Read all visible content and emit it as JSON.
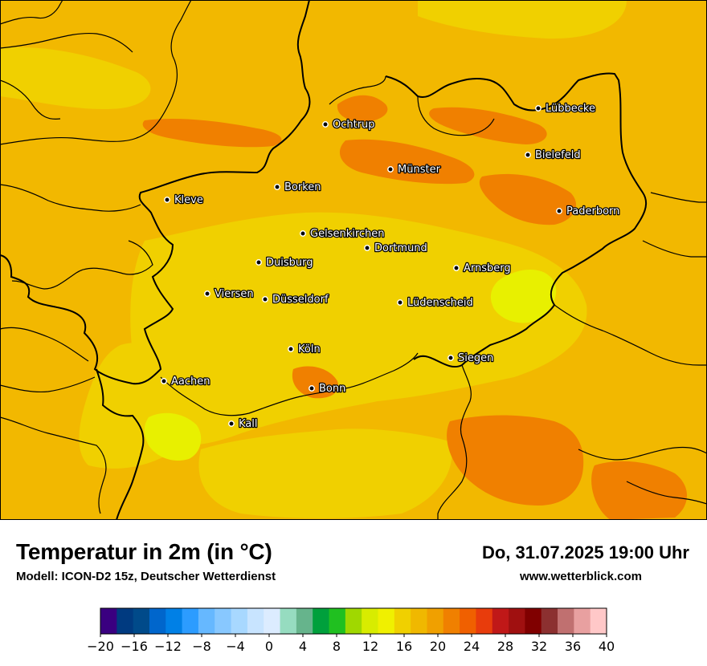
{
  "map": {
    "cities": [
      {
        "name": "Lübbecke",
        "icon": "city-dot"
      },
      {
        "name": "Ochtrup",
        "icon": "city-dot"
      },
      {
        "name": "Bielefeld",
        "icon": "city-dot"
      },
      {
        "name": "Münster",
        "icon": "city-dot"
      },
      {
        "name": "Borken",
        "icon": "city-dot"
      },
      {
        "name": "Kleve",
        "icon": "city-dot"
      },
      {
        "name": "Paderborn",
        "icon": "city-dot"
      },
      {
        "name": "Gelsenkirchen",
        "icon": "city-dot"
      },
      {
        "name": "Dortmund",
        "icon": "city-dot"
      },
      {
        "name": "Duisburg",
        "icon": "city-dot"
      },
      {
        "name": "Arnsberg",
        "icon": "city-dot"
      },
      {
        "name": "Viersen",
        "icon": "city-dot"
      },
      {
        "name": "Düsseldorf",
        "icon": "city-dot"
      },
      {
        "name": "Lüdenscheid",
        "icon": "city-dot"
      },
      {
        "name": "Köln",
        "icon": "city-dot"
      },
      {
        "name": "Siegen",
        "icon": "city-dot"
      },
      {
        "name": "Aachen",
        "icon": "city-dot"
      },
      {
        "name": "Bonn",
        "icon": "city-dot"
      },
      {
        "name": "Kall",
        "icon": "city-dot"
      }
    ],
    "colors": {
      "t16_18": "#f0d000",
      "t18_20": "#f2b800",
      "t20_22": "#f0a000",
      "t22_24": "#f08000",
      "t14_16": "#f0f000",
      "t12_14": "#d8f000"
    }
  },
  "legend": {
    "title": "Temperatur in 2m (in °C)",
    "model": "Modell: ICON-D2 15z, Deutscher Wetterdienst",
    "datetime": "Do, 31.07.2025 19:00 Uhr",
    "website": "www.wetterblick.com"
  },
  "colorbar": {
    "colors": [
      "#3a0080",
      "#003a80",
      "#004a8a",
      "#0066cc",
      "#0080e6",
      "#2c9cff",
      "#66b8ff",
      "#88c8ff",
      "#a8d8ff",
      "#c8e4ff",
      "#dcecff",
      "#96dcc0",
      "#66b48c",
      "#00a03c",
      "#20c020",
      "#a0d800",
      "#d8ec00",
      "#f0f000",
      "#f0d000",
      "#f0b800",
      "#f0a000",
      "#f08000",
      "#f06000",
      "#e83c0c",
      "#c01818",
      "#a01010",
      "#800000",
      "#8c3030",
      "#c07070",
      "#e8a0a0",
      "#ffc8c8"
    ],
    "tick_labels": [
      "−20",
      "−16",
      "−12",
      "−8",
      "−4",
      "0",
      "4",
      "8",
      "12",
      "16",
      "20",
      "24",
      "28",
      "32",
      "36",
      "40"
    ]
  }
}
